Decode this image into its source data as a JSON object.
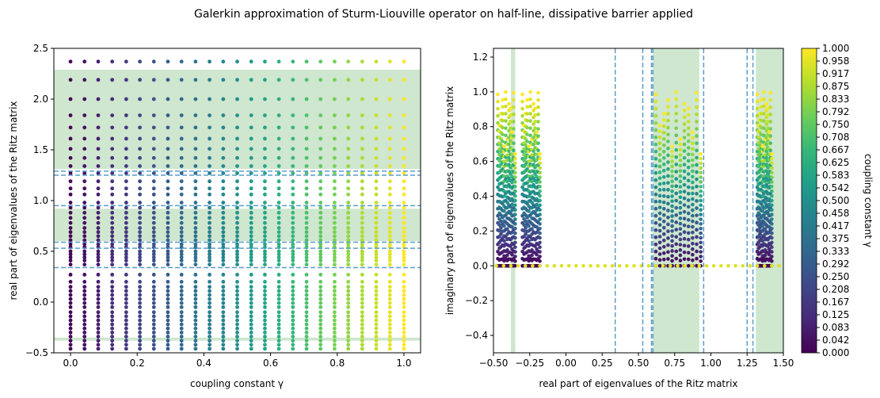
{
  "figure": {
    "title": "Galerkin approximation of Sturm-Liouville operator on half-line, dissipative barrier applied"
  },
  "chart_data": [
    {
      "type": "scatter",
      "panel": "left",
      "xlabel": "coupling constant γ",
      "ylabel": "real part of eigenvalues of the Ritz matrix",
      "xlim": [
        -0.05,
        1.05
      ],
      "ylim": [
        -0.5,
        2.5
      ],
      "xticks": [
        0.0,
        0.2,
        0.4,
        0.6,
        0.8,
        1.0
      ],
      "xtick_labels": [
        "0.0",
        "0.2",
        "0.4",
        "0.6",
        "0.8",
        "1.0"
      ],
      "yticks": [
        -0.5,
        0.0,
        0.5,
        1.0,
        1.5,
        2.0,
        2.5
      ],
      "ytick_labels": [
        "−0.5",
        "0.0",
        "0.5",
        "1.0",
        "1.5",
        "2.0",
        "2.5"
      ],
      "grid": false,
      "gamma_values": [
        0.0,
        0.042,
        0.083,
        0.125,
        0.167,
        0.208,
        0.25,
        0.292,
        0.333,
        0.375,
        0.417,
        0.458,
        0.5,
        0.542,
        0.583,
        0.625,
        0.667,
        0.708,
        0.75,
        0.792,
        0.833,
        0.875,
        0.917,
        0.958,
        1.0
      ],
      "shaded_bands_y": [
        [
          1.31,
          2.29
        ],
        [
          0.6,
          0.92
        ],
        [
          -0.38,
          -0.35
        ]
      ],
      "reference_lines_y": [
        1.29,
        1.25,
        0.95,
        0.59,
        0.53,
        0.34
      ],
      "point_rows_y": [
        2.37,
        2.19,
        2.0,
        1.84,
        1.72,
        1.61,
        1.51,
        1.42,
        1.34,
        1.27,
        1.19,
        1.12,
        1.06,
        0.98,
        0.93,
        0.88,
        0.83,
        0.78,
        0.73,
        0.69,
        0.65,
        0.61,
        0.57,
        0.54,
        0.5,
        0.47,
        0.44,
        0.41,
        0.37,
        0.27,
        0.2,
        0.15,
        0.11,
        0.07,
        0.03,
        -0.01,
        -0.05,
        -0.1,
        -0.14,
        -0.18,
        -0.22,
        -0.26,
        -0.3,
        -0.34,
        -0.38,
        -0.42,
        -0.46,
        -0.5
      ]
    },
    {
      "type": "scatter",
      "panel": "right",
      "xlabel": "real part of eigenvalues of the Ritz matrix",
      "ylabel": "imaginary part of eigenvalues of the Ritz matrix",
      "xlim": [
        -0.5,
        1.5
      ],
      "ylim": [
        -0.5,
        1.25
      ],
      "xticks": [
        -0.5,
        -0.25,
        0.0,
        0.25,
        0.5,
        0.75,
        1.0,
        1.25,
        1.5
      ],
      "xtick_labels": [
        "−0.50",
        "−0.25",
        "0.00",
        "0.25",
        "0.50",
        "0.75",
        "1.00",
        "1.25",
        "1.50"
      ],
      "yticks": [
        -0.4,
        -0.2,
        0.0,
        0.2,
        0.4,
        0.6,
        0.8,
        1.0,
        1.2
      ],
      "ytick_labels": [
        "−0.4",
        "−0.2",
        "0.0",
        "0.2",
        "0.4",
        "0.6",
        "0.8",
        "1.0",
        "1.2"
      ],
      "grid": false,
      "shaded_bands_x": [
        [
          -0.38,
          -0.35
        ],
        [
          0.6,
          0.92
        ],
        [
          1.31,
          1.5
        ]
      ],
      "reference_lines_x": [
        0.34,
        0.53,
        0.59,
        0.6,
        0.95,
        1.25,
        1.29
      ],
      "clusters": [
        {
          "x0": -0.47,
          "x1": -0.35,
          "gamma0": 0.0,
          "gamma1": 1.0
        },
        {
          "x0": -0.3,
          "x1": -0.18,
          "gamma0": 0.0,
          "gamma1": 1.0
        },
        {
          "x0": 0.62,
          "x1": 0.93,
          "gamma0": 0.0,
          "gamma1": 1.0
        },
        {
          "x0": 1.32,
          "x1": 1.42,
          "gamma0": 0.0,
          "gamma1": 1.0
        }
      ]
    }
  ],
  "colorbar": {
    "label": "coupling constant γ",
    "ticks": [
      "0.000",
      "0.042",
      "0.083",
      "0.125",
      "0.167",
      "0.208",
      "0.250",
      "0.292",
      "0.333",
      "0.375",
      "0.417",
      "0.458",
      "0.500",
      "0.542",
      "0.583",
      "0.625",
      "0.667",
      "0.708",
      "0.750",
      "0.792",
      "0.833",
      "0.875",
      "0.917",
      "0.958",
      "1.000"
    ],
    "colormap": [
      "#440154",
      "#482878",
      "#3e4989",
      "#31688e",
      "#26828e",
      "#1f9e89",
      "#35b779",
      "#6ece58",
      "#b5de2b",
      "#fde725"
    ]
  },
  "colors": {
    "band": "#cfe6cf",
    "reference_line": "#5b9ec9"
  }
}
